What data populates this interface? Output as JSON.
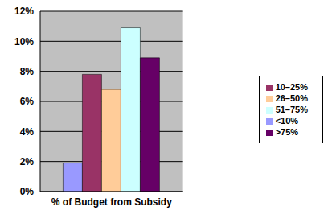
{
  "chart_data": {
    "type": "bar",
    "categories": [
      "% of Budget from Subsidy"
    ],
    "series": [
      {
        "name": "<10%",
        "color": "#9999ff",
        "values": [
          1.9
        ]
      },
      {
        "name": "10–25%",
        "color": "#993366",
        "values": [
          7.8
        ]
      },
      {
        "name": "26–50%",
        "color": "#ffcc99",
        "values": [
          6.8
        ]
      },
      {
        "name": "51–75%",
        "color": "#ccffff",
        "values": [
          10.9
        ]
      },
      {
        "name": ">75%",
        "color": "#660066",
        "values": [
          8.9
        ]
      }
    ],
    "ylim": [
      0,
      12
    ],
    "yticks": [
      {
        "value": 0,
        "label": "0%"
      },
      {
        "value": 2,
        "label": "2%"
      },
      {
        "value": 4,
        "label": "4%"
      },
      {
        "value": 6,
        "label": "6%"
      },
      {
        "value": 8,
        "label": "8%"
      },
      {
        "value": 10,
        "label": "10%"
      },
      {
        "value": 12,
        "label": "12%"
      }
    ],
    "grid": true,
    "legend": "right"
  }
}
